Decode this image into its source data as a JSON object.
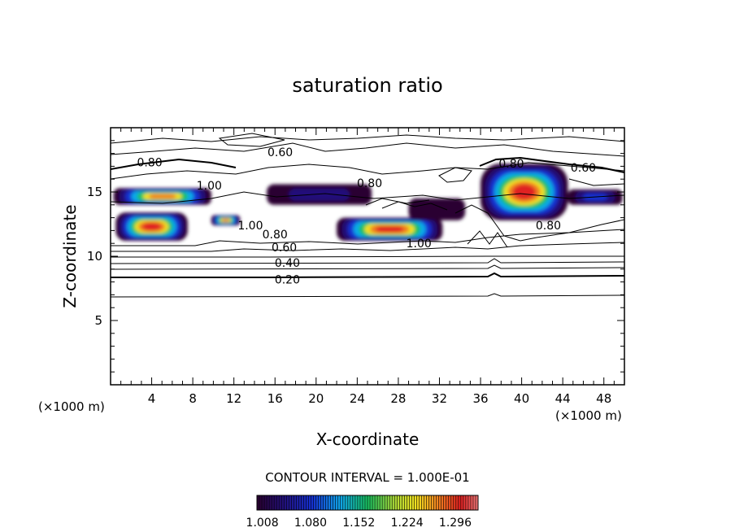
{
  "chart_data": {
    "type": "heatmap",
    "title": "saturation ratio",
    "xlabel": "X-coordinate",
    "ylabel": "Z-coordinate",
    "x_unit": "(×1000 m)",
    "z_unit": "(×1000 m)",
    "xlim": [
      0,
      50
    ],
    "ylim": [
      0,
      20
    ],
    "x_ticks": [
      4,
      8,
      12,
      16,
      20,
      24,
      28,
      32,
      36,
      40,
      44,
      48
    ],
    "y_ticks": [
      5,
      10,
      15
    ],
    "contour_interval_text": "CONTOUR INTERVAL = 1.000E-01",
    "colorbar": {
      "labels": [
        "1.008",
        "1.080",
        "1.152",
        "1.224",
        "1.296"
      ],
      "values": [
        1.008,
        1.08,
        1.152,
        1.224,
        1.296
      ],
      "range": [
        1.0,
        1.33
      ]
    },
    "contour_labels": [
      {
        "text": "0.60",
        "x": 16.5,
        "z": 18.1
      },
      {
        "text": "0.80",
        "x": 3.8,
        "z": 17.3
      },
      {
        "text": "0.60",
        "x": 46.0,
        "z": 16.9
      },
      {
        "text": "0.80",
        "x": 39.0,
        "z": 17.2
      },
      {
        "text": "1.00",
        "x": 9.6,
        "z": 15.5
      },
      {
        "text": "0.80",
        "x": 25.2,
        "z": 15.7
      },
      {
        "text": "1.00",
        "x": 13.6,
        "z": 12.4
      },
      {
        "text": "0.80",
        "x": 16.0,
        "z": 11.7
      },
      {
        "text": "0.60",
        "x": 16.9,
        "z": 10.7
      },
      {
        "text": "0.40",
        "x": 17.2,
        "z": 9.5
      },
      {
        "text": "0.20",
        "x": 17.2,
        "z": 8.2
      },
      {
        "text": "1.00",
        "x": 30.0,
        "z": 11.0
      },
      {
        "text": "0.80",
        "x": 42.6,
        "z": 12.4
      }
    ],
    "supersaturated_regions": [
      {
        "x": [
          0.3,
          9.8
        ],
        "z": [
          14.0,
          15.3
        ],
        "max": 1.3
      },
      {
        "x": [
          0.5,
          7.5
        ],
        "z": [
          11.2,
          13.4
        ],
        "max": 1.32
      },
      {
        "x": [
          9.8,
          12.6
        ],
        "z": [
          12.4,
          13.2
        ],
        "max": 1.3
      },
      {
        "x": [
          15.2,
          25.4
        ],
        "z": [
          14.0,
          15.6
        ],
        "max": 1.06
      },
      {
        "x": [
          22.0,
          32.3
        ],
        "z": [
          11.2,
          13.0
        ],
        "max": 1.33
      },
      {
        "x": [
          29.0,
          34.5
        ],
        "z": [
          12.8,
          14.5
        ],
        "max": 1.03
      },
      {
        "x": [
          36.0,
          44.5
        ],
        "z": [
          12.8,
          17.2
        ],
        "max": 1.32
      },
      {
        "x": [
          44.5,
          49.8
        ],
        "z": [
          14.0,
          15.2
        ],
        "max": 1.12
      }
    ]
  }
}
